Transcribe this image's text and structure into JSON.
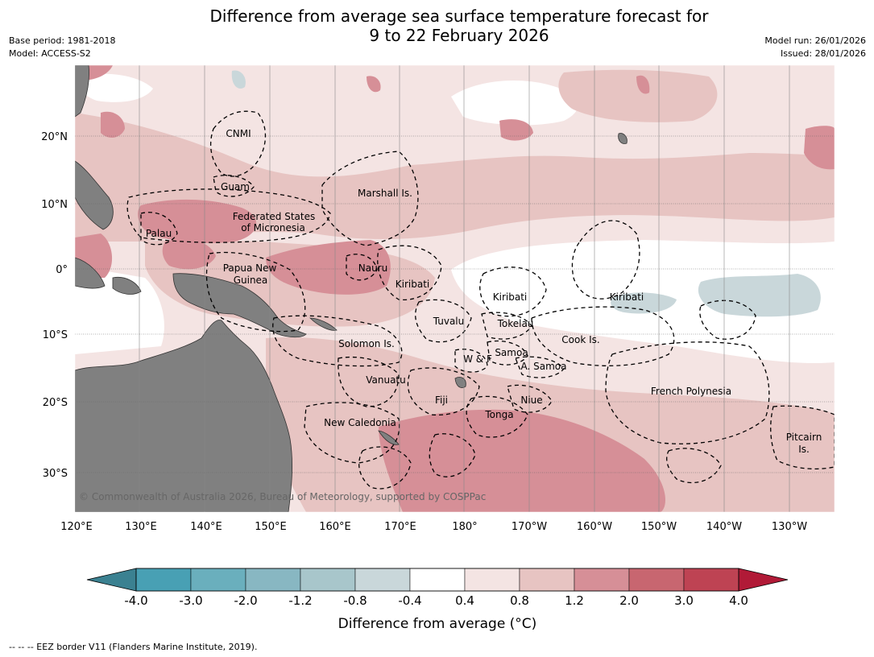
{
  "title": {
    "line1": "Difference from average sea surface temperature forecast for",
    "line2": "9 to 22 February 2026"
  },
  "meta": {
    "base_period": "Base period: 1981-2018",
    "model": "Model: ACCESS-S2",
    "model_run": "Model run: 26/01/2026",
    "issued": "Issued: 28/01/2026"
  },
  "axes": {
    "lon_labels": [
      "120°E",
      "130°E",
      "140°E",
      "150°E",
      "160°E",
      "170°E",
      "180°",
      "170°W",
      "160°W",
      "150°W",
      "140°W",
      "130°W"
    ],
    "lat_labels": [
      "20°N",
      "10°N",
      "0°",
      "10°S",
      "20°S",
      "30°S"
    ]
  },
  "regions": {
    "cnmi": "CNMI",
    "guam": "Guam",
    "marshall": "Marshall Is.",
    "fsm1": "Federated States",
    "fsm2": "of Micronesia",
    "palau": "Palau",
    "png1": "Papua New",
    "png2": "Guinea",
    "nauru": "Nauru",
    "kiribati_w": "Kiribati",
    "kiribati_c": "Kiribati",
    "kiribati_e": "Kiribati",
    "tuvalu": "Tuvalu",
    "tokelau": "Tokelau",
    "cook": "Cook Is.",
    "solomon": "Solomon Is.",
    "samoa": "Samoa",
    "wf": "W & F",
    "asamoa": "A. Samoa",
    "vanuatu": "Vanuatu",
    "fiji": "Fiji",
    "niue": "Niue",
    "tonga": "Tonga",
    "frenchpoly": "French Polynesia",
    "newcal": "New Caledonia",
    "pitcairn1": "Pitcairn",
    "pitcairn2": "Is."
  },
  "copyright": "© Commonwealth of Australia 2026, Bureau of Meteorology, supported by COSPPac",
  "colorbar": {
    "ticks": [
      "-4.0",
      "-3.0",
      "-2.0",
      "-1.2",
      "-0.8",
      "-0.4",
      "0.4",
      "0.8",
      "1.2",
      "2.0",
      "3.0",
      "4.0"
    ],
    "colors": [
      "#48a0b4",
      "#6aafbd",
      "#88b7c2",
      "#a8c6cb",
      "#c9d7da",
      "#ffffff",
      "#f4e4e3",
      "#e7c4c2",
      "#d68f97",
      "#c86670",
      "#be4353"
    ],
    "under_color": "#3b8191",
    "over_color": "#b11a37",
    "label": "Difference from average (°C)"
  },
  "footer": "--  --  -- EEZ border V11 (Flanders Marine Institute, 2019).",
  "colors": {
    "land": "#808080",
    "warm1": "#f4e4e3",
    "warm2": "#e7c4c2",
    "warm3": "#d68f97",
    "warm4": "#c86670",
    "cool1": "#c9d7da"
  }
}
